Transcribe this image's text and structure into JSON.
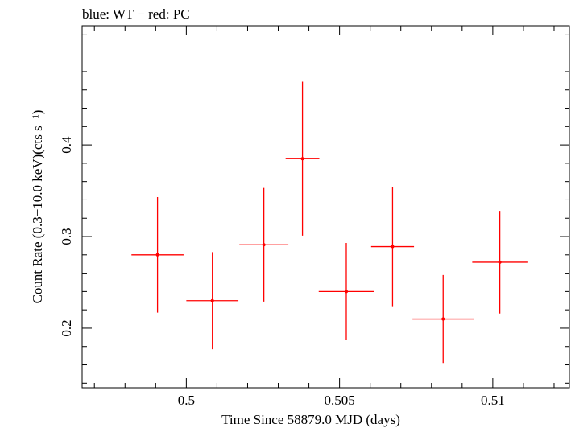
{
  "chart_data": {
    "type": "scatter",
    "title": "blue: WT − red: PC",
    "xlabel": "Time Since 58879.0 MJD (days)",
    "ylabel": "Count Rate (0.3−10.0 keV)(cts s⁻¹)",
    "xlim": [
      0.4966,
      0.5125
    ],
    "ylim": [
      0.135,
      0.53
    ],
    "x_ticks": [
      0.5,
      0.505,
      0.51
    ],
    "x_tick_labels": [
      "0.5",
      "0.505",
      "0.51"
    ],
    "y_ticks": [
      0.2,
      0.3,
      0.4
    ],
    "y_tick_labels": [
      "0.2",
      "0.3",
      "0.4"
    ],
    "grid": false,
    "series": [
      {
        "name": "PC",
        "color": "#ff0000",
        "points": [
          {
            "x": 0.49906,
            "xerr": 0.00085,
            "y": 0.28,
            "yerr": 0.063
          },
          {
            "x": 0.50085,
            "xerr": 0.00085,
            "y": 0.23,
            "yerr": 0.053
          },
          {
            "x": 0.50253,
            "xerr": 0.0008,
            "y": 0.291,
            "yerr": 0.062
          },
          {
            "x": 0.50379,
            "xerr": 0.00055,
            "y": 0.385,
            "yerr": 0.084
          },
          {
            "x": 0.50522,
            "xerr": 0.0009,
            "y": 0.24,
            "yerr": 0.053
          },
          {
            "x": 0.50673,
            "xerr": 0.0007,
            "y": 0.289,
            "yerr": 0.065
          },
          {
            "x": 0.50838,
            "xerr": 0.001,
            "y": 0.21,
            "yerr": 0.048
          },
          {
            "x": 0.51023,
            "xerr": 0.0009,
            "y": 0.272,
            "yerr": 0.056
          }
        ]
      }
    ]
  }
}
